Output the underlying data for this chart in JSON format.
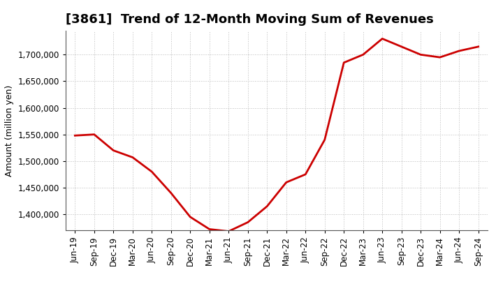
{
  "title": "[3861]  Trend of 12-Month Moving Sum of Revenues",
  "ylabel": "Amount (million yen)",
  "line_color": "#cc0000",
  "line_width": 2.0,
  "background_color": "#ffffff",
  "grid_color": "#bbbbbb",
  "ylim": [
    1370000,
    1745000
  ],
  "yticks": [
    1400000,
    1450000,
    1500000,
    1550000,
    1600000,
    1650000,
    1700000
  ],
  "x_labels": [
    "Jun-19",
    "Sep-19",
    "Dec-19",
    "Mar-20",
    "Jun-20",
    "Sep-20",
    "Dec-20",
    "Mar-21",
    "Jun-21",
    "Sep-21",
    "Dec-21",
    "Mar-22",
    "Jun-22",
    "Sep-22",
    "Dec-22",
    "Mar-23",
    "Jun-23",
    "Sep-23",
    "Dec-23",
    "Mar-24",
    "Jun-24",
    "Sep-24"
  ],
  "y_values": [
    1548000,
    1550000,
    1520000,
    1507000,
    1480000,
    1440000,
    1395000,
    1372000,
    1368000,
    1385000,
    1415000,
    1460000,
    1475000,
    1540000,
    1685000,
    1700000,
    1730000,
    1715000,
    1700000,
    1695000,
    1707000,
    1715000
  ],
  "title_fontsize": 13,
  "tick_fontsize": 8.5,
  "ylabel_fontsize": 9
}
